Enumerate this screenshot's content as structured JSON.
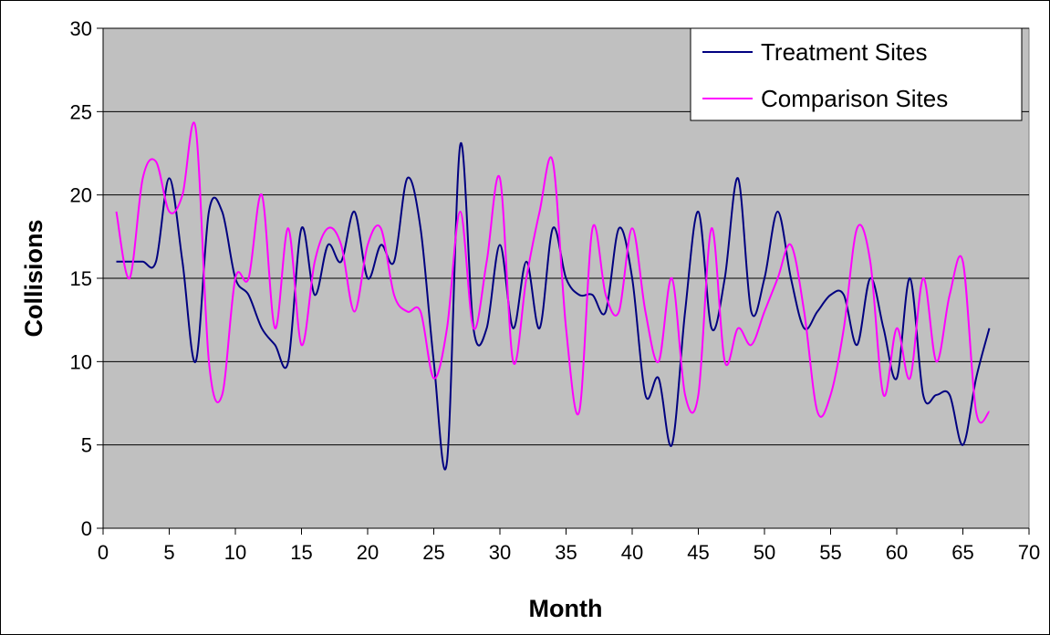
{
  "colors": {
    "plot_background": "#C0C0C0",
    "gridline": "#000000",
    "treatment": "#000080",
    "comparison": "#FF00FF"
  },
  "chart_data": {
    "type": "line",
    "title": "",
    "xlabel": "Month",
    "ylabel": "Collisions",
    "xlim": [
      0,
      70
    ],
    "ylim": [
      0,
      30
    ],
    "x_ticks": [
      0,
      5,
      10,
      15,
      20,
      25,
      30,
      35,
      40,
      45,
      50,
      55,
      60,
      65,
      70
    ],
    "y_ticks": [
      0,
      5,
      10,
      15,
      20,
      25,
      30
    ],
    "grid": "horizontal",
    "legend": "top-right",
    "x": [
      1,
      2,
      3,
      4,
      5,
      6,
      7,
      8,
      9,
      10,
      11,
      12,
      13,
      14,
      15,
      16,
      17,
      18,
      19,
      20,
      21,
      22,
      23,
      24,
      25,
      26,
      27,
      28,
      29,
      30,
      31,
      32,
      33,
      34,
      35,
      36,
      37,
      38,
      39,
      40,
      41,
      42,
      43,
      44,
      45,
      46,
      47,
      48,
      49,
      50,
      51,
      52,
      53,
      54,
      55,
      56,
      57,
      58,
      59,
      60,
      61,
      62,
      63,
      64,
      65,
      66,
      67
    ],
    "series": [
      {
        "name": "Treatment Sites",
        "values": [
          16,
          16,
          16,
          16,
          21,
          16,
          10,
          19,
          19,
          15,
          14,
          12,
          11,
          10,
          18,
          14,
          17,
          16,
          19,
          15,
          17,
          16,
          21,
          18,
          10,
          4,
          23,
          12,
          12,
          17,
          12,
          16,
          12,
          18,
          15,
          14,
          14,
          13,
          18,
          15,
          8,
          9,
          5,
          13,
          19,
          12,
          15,
          21,
          13,
          15,
          19,
          15,
          12,
          13,
          14,
          14,
          11,
          15,
          12,
          9,
          15,
          8,
          8,
          8,
          5,
          9,
          12
        ]
      },
      {
        "name": "Comparison Sites",
        "values": [
          19,
          15,
          21,
          22,
          19,
          20,
          24,
          10,
          8,
          15,
          15,
          20,
          12,
          18,
          11,
          16,
          18,
          17,
          13,
          17,
          18,
          14,
          13,
          13,
          9,
          12,
          19,
          12,
          16,
          21,
          10,
          15,
          19,
          22,
          12,
          7,
          18,
          14,
          13,
          18,
          13,
          10,
          15,
          8,
          8,
          18,
          10,
          12,
          11,
          13,
          15,
          17,
          13,
          7,
          8,
          12,
          18,
          16,
          8,
          12,
          9,
          15,
          10,
          14,
          16,
          7,
          7
        ]
      }
    ]
  }
}
